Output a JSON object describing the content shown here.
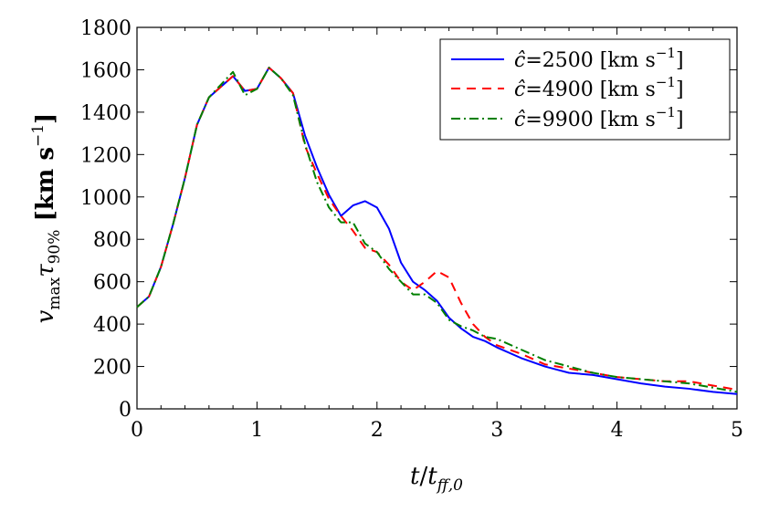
{
  "chart_data": {
    "type": "line",
    "title": "",
    "xlabel": "t/t_ff,0",
    "ylabel": "v_max τ_90% [km s^-1]",
    "xlim": [
      0,
      5
    ],
    "ylim": [
      0,
      1800
    ],
    "grid": false,
    "legend_position": "top-right",
    "x_ticks": [
      "0",
      "1",
      "2",
      "3",
      "4",
      "5"
    ],
    "y_ticks": [
      "0",
      "200",
      "400",
      "600",
      "800",
      "1000",
      "1200",
      "1400",
      "1600",
      "1800"
    ],
    "series": [
      {
        "name": "ĉ=2500 [km s^-1]",
        "legend_value": "2500",
        "color": "#0000ff",
        "style": "solid",
        "x": [
          0,
          0.1,
          0.2,
          0.3,
          0.4,
          0.5,
          0.6,
          0.7,
          0.8,
          0.9,
          1.0,
          1.1,
          1.2,
          1.3,
          1.4,
          1.5,
          1.6,
          1.7,
          1.8,
          1.9,
          2.0,
          2.1,
          2.2,
          2.3,
          2.4,
          2.5,
          2.6,
          2.7,
          2.8,
          2.9,
          3.0,
          3.2,
          3.4,
          3.5,
          3.6,
          3.8,
          4.0,
          4.2,
          4.4,
          4.6,
          4.8,
          5.0
        ],
        "y": [
          480,
          530,
          670,
          870,
          1090,
          1340,
          1470,
          1520,
          1570,
          1500,
          1510,
          1610,
          1560,
          1490,
          1290,
          1140,
          1010,
          910,
          960,
          980,
          950,
          850,
          690,
          600,
          560,
          510,
          430,
          380,
          340,
          320,
          290,
          240,
          200,
          185,
          170,
          160,
          140,
          120,
          105,
          95,
          80,
          70
        ]
      },
      {
        "name": "ĉ=4900 [km s^-1]",
        "legend_value": "4900",
        "color": "#ff0000",
        "style": "dashed",
        "x": [
          0,
          0.1,
          0.2,
          0.3,
          0.4,
          0.5,
          0.6,
          0.7,
          0.8,
          0.9,
          1.0,
          1.1,
          1.2,
          1.3,
          1.4,
          1.5,
          1.6,
          1.7,
          1.8,
          1.9,
          2.0,
          2.1,
          2.2,
          2.3,
          2.4,
          2.5,
          2.6,
          2.7,
          2.8,
          2.9,
          3.0,
          3.2,
          3.4,
          3.6,
          3.8,
          4.0,
          4.2,
          4.4,
          4.6,
          4.8,
          5.0
        ],
        "y": [
          480,
          530,
          670,
          870,
          1090,
          1340,
          1470,
          1520,
          1570,
          1500,
          1510,
          1610,
          1560,
          1490,
          1240,
          1110,
          990,
          910,
          840,
          760,
          740,
          680,
          600,
          560,
          600,
          650,
          620,
          500,
          400,
          340,
          300,
          260,
          210,
          190,
          170,
          150,
          140,
          130,
          130,
          110,
          90
        ]
      },
      {
        "name": "ĉ=9900 [km s^-1]",
        "legend_value": "9900",
        "color": "#008000",
        "style": "dashdot",
        "x": [
          0,
          0.1,
          0.2,
          0.3,
          0.4,
          0.5,
          0.6,
          0.7,
          0.8,
          0.9,
          1.0,
          1.1,
          1.2,
          1.3,
          1.4,
          1.5,
          1.6,
          1.7,
          1.8,
          1.9,
          2.0,
          2.1,
          2.2,
          2.3,
          2.4,
          2.5,
          2.6,
          2.7,
          2.8,
          2.9,
          3.0,
          3.2,
          3.4,
          3.6,
          3.8,
          4.0,
          4.2,
          4.4,
          4.6,
          4.8,
          5.0
        ],
        "y": [
          480,
          530,
          670,
          870,
          1090,
          1340,
          1470,
          1530,
          1590,
          1480,
          1510,
          1610,
          1560,
          1480,
          1250,
          1070,
          950,
          880,
          880,
          780,
          740,
          660,
          600,
          540,
          540,
          500,
          420,
          390,
          370,
          340,
          330,
          280,
          230,
          200,
          170,
          150,
          140,
          130,
          120,
          100,
          80
        ]
      }
    ]
  },
  "legend": {
    "c_hat": "ĉ",
    "equals": "=",
    "unit_prefix": "[km s",
    "unit_exp": "−1",
    "unit_suffix": "]"
  },
  "axis_text": {
    "x_t": "t",
    "x_slash": "/",
    "x_tsub": "t",
    "x_tsub_sub": "ff,0",
    "y_v": "v",
    "y_v_sub": "max",
    "y_tau": "τ",
    "y_tau_sub": "90%",
    "y_unit_prefix": " [km s",
    "y_unit_exp": "−1",
    "y_unit_suffix": "]"
  }
}
